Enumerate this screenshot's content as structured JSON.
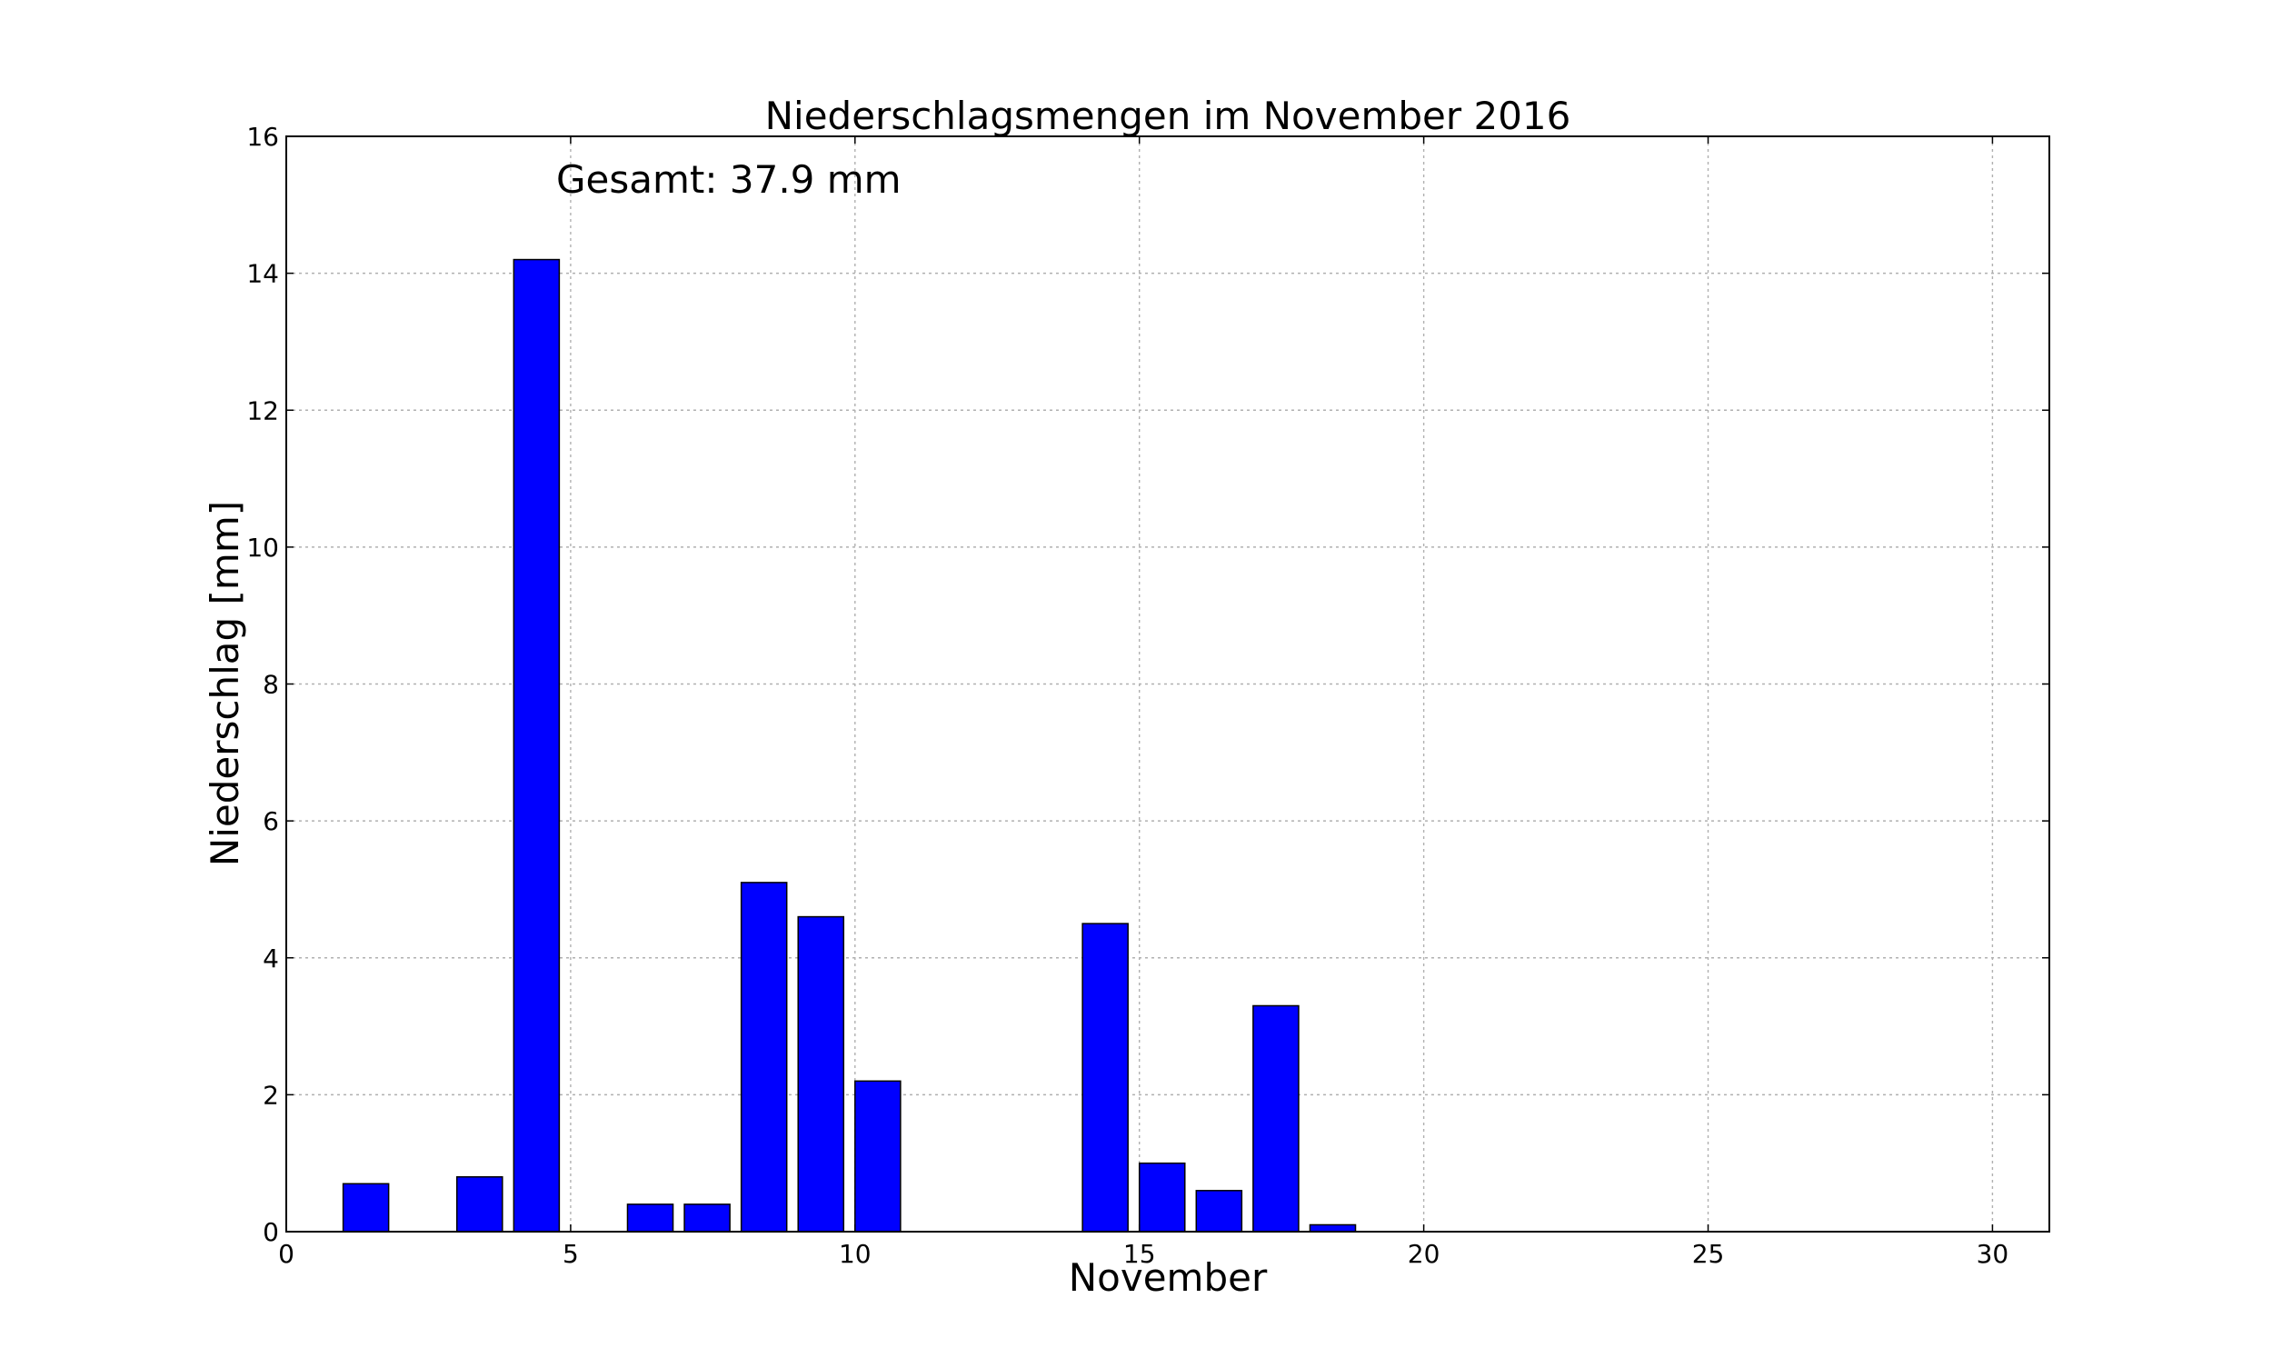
{
  "chart_data": {
    "type": "bar",
    "title": "Niederschlagsmengen im November 2016",
    "xlabel": "November",
    "ylabel": "Niederschlag [mm]",
    "annotation": "Gesamt: 37.9 mm",
    "bar_color": "#0000ff",
    "x": [
      1,
      2,
      3,
      4,
      5,
      6,
      7,
      8,
      9,
      10,
      11,
      12,
      13,
      14,
      15,
      16,
      17,
      18,
      19,
      20,
      21,
      22,
      23,
      24,
      25,
      26,
      27,
      28,
      29,
      30
    ],
    "values": [
      0.7,
      0,
      0.8,
      14.2,
      0,
      0.4,
      0.4,
      5.1,
      4.6,
      2.2,
      0,
      0,
      0,
      4.5,
      1.0,
      0.6,
      3.3,
      0.1,
      0,
      0,
      0,
      0,
      0,
      0,
      0,
      0,
      0,
      0,
      0,
      0
    ],
    "xlim": [
      0,
      31
    ],
    "ylim": [
      0,
      16
    ],
    "xticks": [
      "0",
      "5",
      "10",
      "15",
      "20",
      "25",
      "30"
    ],
    "yticks": [
      "0",
      "2",
      "4",
      "6",
      "8",
      "10",
      "12",
      "14",
      "16"
    ],
    "grid": true,
    "legend": "none"
  }
}
